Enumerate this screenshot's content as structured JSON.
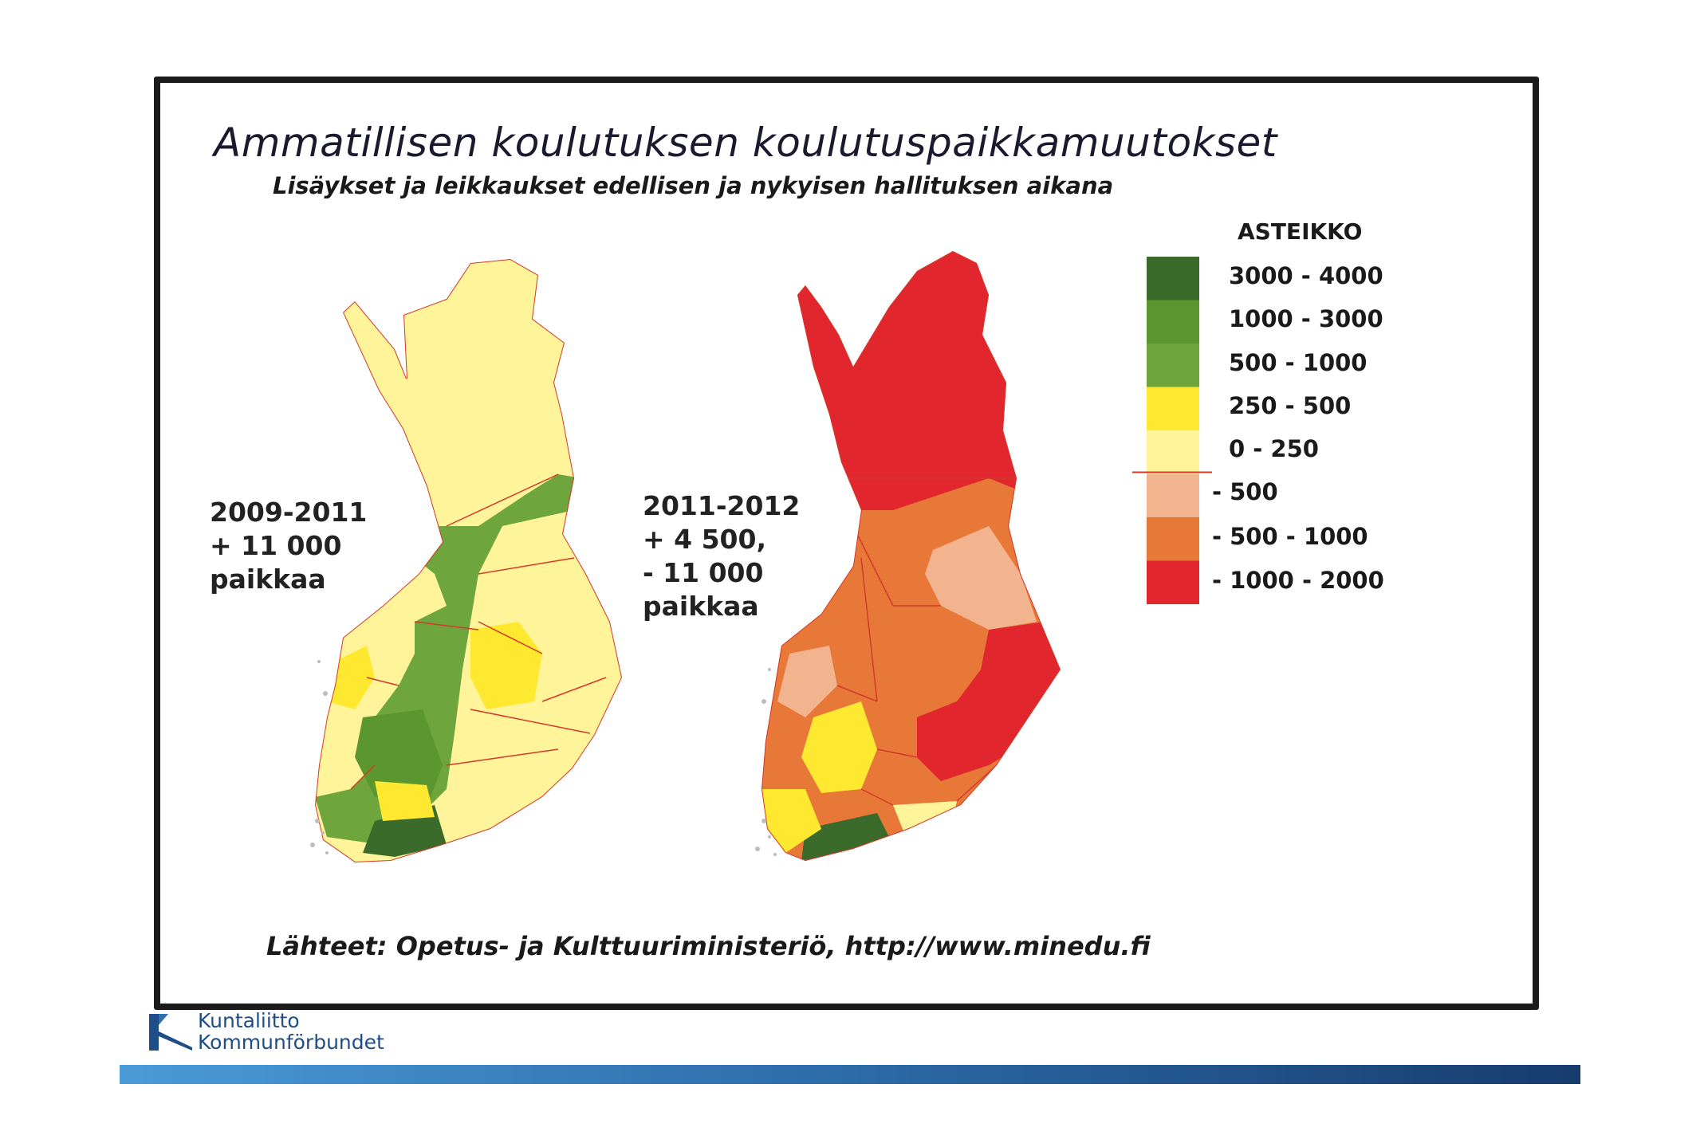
{
  "slide": {
    "title": "Ammatillisen koulutuksen koulutuspaikkamuutokset",
    "subtitle": "Lisäykset ja leikkaukset edellisen ja nykyisen hallituksen aikana",
    "source": "Lähteet: Opetus- ja Kulttuuriministeriö, http://www.minedu.fi"
  },
  "maps": [
    {
      "id": "left",
      "period": "2009-2011",
      "lines": [
        "+ 11 000",
        "paikkaa"
      ]
    },
    {
      "id": "right",
      "period": "2011-2012",
      "lines": [
        "+ 4 500,",
        "- 11 000",
        "paikkaa"
      ]
    }
  ],
  "legend": {
    "title": "ASTEIKKO",
    "items": [
      {
        "label": "3000 - 4000",
        "color": "#3a6b2a"
      },
      {
        "label": "1000 - 3000",
        "color": "#5b962f"
      },
      {
        "label": "500 - 1000",
        "color": "#6ea53c"
      },
      {
        "label": "250 - 500",
        "color": "#ffe930"
      },
      {
        "label": "0 - 250",
        "color": "#fff49a"
      },
      {
        "label": "- 500",
        "color": "#f2b38f"
      },
      {
        "label": "- 500 - 1000",
        "color": "#e87838"
      },
      {
        "label": "- 1000 - 2000",
        "color": "#e2262d"
      }
    ]
  },
  "logo": {
    "line1": "Kuntaliitto",
    "line2": "Kommunförbundet"
  }
}
